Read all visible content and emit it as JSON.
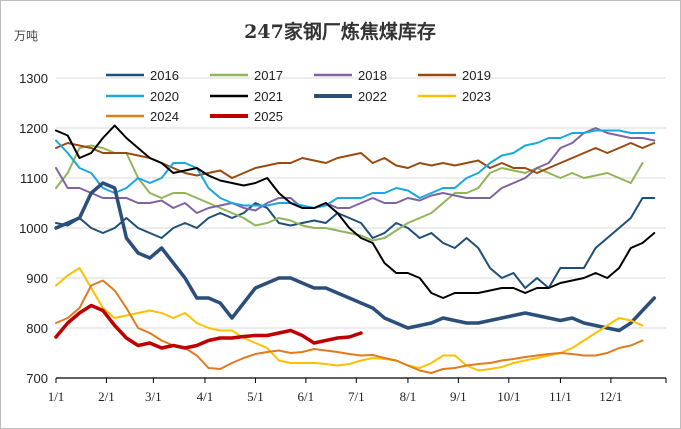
{
  "chart_data": {
    "type": "line",
    "title": "247家钢厂炼焦煤库存",
    "ylabel": "万吨",
    "xlabel": "",
    "ylim": [
      700,
      1300
    ],
    "yticks": [
      700,
      800,
      900,
      1000,
      1100,
      1200,
      1300
    ],
    "xlim": [
      0,
      52
    ],
    "x_tick_labels": [
      "1/1",
      "2/1",
      "3/1",
      "4/1",
      "5/1",
      "6/1",
      "7/1",
      "8/1",
      "9/1",
      "10/1",
      "11/1",
      "12/1"
    ],
    "x_tick_positions": [
      0,
      4.3,
      8.3,
      12.7,
      17,
      21.3,
      25.6,
      30,
      34.3,
      38.6,
      43,
      47.3
    ],
    "grid": "horizontal",
    "legend_position": "top",
    "series": [
      {
        "name": "2016",
        "color": "#1f4e79",
        "width": 2,
        "x": [
          0,
          1,
          2,
          3,
          4,
          5,
          6,
          7,
          8,
          9,
          10,
          11,
          12,
          13,
          14,
          15,
          16,
          17,
          18,
          19,
          20,
          21,
          22,
          23,
          24,
          25,
          26,
          27,
          28,
          29,
          30,
          31,
          32,
          33,
          34,
          35,
          36,
          37,
          38,
          39,
          40,
          41,
          42,
          43,
          44,
          45,
          46,
          47,
          48,
          49,
          50,
          51
        ],
        "values": [
          1010,
          1005,
          1020,
          1000,
          990,
          1000,
          1020,
          1000,
          990,
          980,
          1000,
          1010,
          1000,
          1020,
          1030,
          1020,
          1030,
          1050,
          1040,
          1010,
          1005,
          1010,
          1015,
          1010,
          1030,
          1020,
          1010,
          980,
          990,
          1010,
          1000,
          980,
          990,
          970,
          960,
          980,
          960,
          920,
          900,
          910,
          880,
          900,
          880,
          920,
          920,
          920,
          960,
          980,
          1000,
          1020,
          1060,
          1060
        ]
      },
      {
        "name": "2017",
        "color": "#92b45a",
        "width": 2,
        "x": [
          0,
          1,
          2,
          3,
          4,
          5,
          6,
          7,
          8,
          9,
          10,
          11,
          12,
          13,
          14,
          15,
          16,
          17,
          18,
          19,
          20,
          21,
          22,
          23,
          24,
          25,
          26,
          27,
          28,
          29,
          30,
          31,
          32,
          33,
          34,
          35,
          36,
          37,
          38,
          39,
          40,
          41,
          42,
          43,
          44,
          45,
          46,
          47,
          48,
          49,
          50
        ],
        "values": [
          1080,
          1110,
          1160,
          1165,
          1160,
          1150,
          1150,
          1100,
          1070,
          1060,
          1070,
          1070,
          1060,
          1050,
          1040,
          1030,
          1020,
          1005,
          1010,
          1020,
          1015,
          1005,
          1000,
          1000,
          995,
          990,
          985,
          975,
          980,
          995,
          1010,
          1020,
          1030,
          1050,
          1070,
          1070,
          1080,
          1110,
          1120,
          1115,
          1110,
          1120,
          1110,
          1100,
          1110,
          1100,
          1105,
          1110,
          1100,
          1090,
          1130
        ]
      },
      {
        "name": "2018",
        "color": "#8064a2",
        "width": 2,
        "x": [
          0,
          1,
          2,
          3,
          4,
          5,
          6,
          7,
          8,
          9,
          10,
          11,
          12,
          13,
          14,
          15,
          16,
          17,
          18,
          19,
          20,
          21,
          22,
          23,
          24,
          25,
          26,
          27,
          28,
          29,
          30,
          31,
          32,
          33,
          34,
          35,
          36,
          37,
          38,
          39,
          40,
          41,
          42,
          43,
          44,
          45,
          46,
          47,
          48,
          49,
          50,
          51
        ],
        "values": [
          1120,
          1080,
          1080,
          1070,
          1060,
          1060,
          1060,
          1050,
          1050,
          1055,
          1040,
          1050,
          1030,
          1040,
          1045,
          1050,
          1040,
          1035,
          1050,
          1060,
          1060,
          1040,
          1040,
          1050,
          1040,
          1040,
          1050,
          1060,
          1050,
          1050,
          1060,
          1055,
          1065,
          1070,
          1065,
          1060,
          1060,
          1060,
          1080,
          1090,
          1100,
          1120,
          1130,
          1160,
          1170,
          1190,
          1200,
          1190,
          1185,
          1180,
          1180,
          1175
        ]
      },
      {
        "name": "2019",
        "color": "#9a4a10",
        "width": 2,
        "x": [
          0,
          1,
          2,
          3,
          4,
          5,
          6,
          7,
          8,
          9,
          10,
          11,
          12,
          13,
          14,
          15,
          16,
          17,
          18,
          19,
          20,
          21,
          22,
          23,
          24,
          25,
          26,
          27,
          28,
          29,
          30,
          31,
          32,
          33,
          34,
          35,
          36,
          37,
          38,
          39,
          40,
          41,
          42,
          43,
          44,
          45,
          46,
          47,
          48,
          49,
          50,
          51
        ],
        "values": [
          1160,
          1170,
          1165,
          1160,
          1150,
          1150,
          1150,
          1145,
          1140,
          1130,
          1120,
          1110,
          1105,
          1110,
          1115,
          1100,
          1110,
          1120,
          1125,
          1130,
          1130,
          1140,
          1135,
          1130,
          1140,
          1145,
          1150,
          1130,
          1140,
          1125,
          1120,
          1130,
          1125,
          1130,
          1125,
          1130,
          1135,
          1120,
          1130,
          1120,
          1120,
          1110,
          1120,
          1130,
          1140,
          1150,
          1160,
          1150,
          1160,
          1170,
          1160,
          1170
        ]
      },
      {
        "name": "2020",
        "color": "#1aa7e0",
        "width": 2,
        "x": [
          0,
          1,
          2,
          3,
          4,
          5,
          6,
          7,
          8,
          9,
          10,
          11,
          12,
          13,
          14,
          15,
          16,
          17,
          18,
          19,
          20,
          21,
          22,
          23,
          24,
          25,
          26,
          27,
          28,
          29,
          30,
          31,
          32,
          33,
          34,
          35,
          36,
          37,
          38,
          39,
          40,
          41,
          42,
          43,
          44,
          45,
          46,
          47,
          48,
          49,
          50,
          51
        ],
        "values": [
          1175,
          1150,
          1120,
          1110,
          1080,
          1070,
          1080,
          1100,
          1090,
          1100,
          1130,
          1130,
          1120,
          1080,
          1060,
          1050,
          1045,
          1045,
          1045,
          1050,
          1050,
          1045,
          1040,
          1045,
          1060,
          1060,
          1060,
          1070,
          1070,
          1080,
          1075,
          1060,
          1070,
          1080,
          1080,
          1100,
          1110,
          1130,
          1145,
          1150,
          1165,
          1170,
          1180,
          1180,
          1190,
          1190,
          1195,
          1195,
          1195,
          1190,
          1190,
          1190
        ]
      },
      {
        "name": "2021",
        "color": "#000000",
        "width": 2,
        "x": [
          0,
          1,
          2,
          3,
          4,
          5,
          6,
          7,
          8,
          9,
          10,
          11,
          12,
          13,
          14,
          15,
          16,
          17,
          18,
          19,
          20,
          21,
          22,
          23,
          24,
          25,
          26,
          27,
          28,
          29,
          30,
          31,
          32,
          33,
          34,
          35,
          36,
          37,
          38,
          39,
          40,
          41,
          42,
          43,
          44,
          45,
          46,
          47,
          48,
          49,
          50,
          51
        ],
        "values": [
          1195,
          1185,
          1140,
          1150,
          1180,
          1205,
          1180,
          1160,
          1140,
          1130,
          1110,
          1115,
          1120,
          1105,
          1095,
          1090,
          1085,
          1090,
          1100,
          1070,
          1050,
          1040,
          1040,
          1050,
          1030,
          1000,
          980,
          970,
          930,
          910,
          910,
          900,
          870,
          860,
          870,
          870,
          870,
          875,
          880,
          880,
          870,
          880,
          880,
          890,
          895,
          900,
          910,
          900,
          920,
          960,
          970,
          990
        ]
      },
      {
        "name": "2022",
        "color": "#2b4e7a",
        "width": 3.5,
        "x": [
          0,
          1,
          2,
          3,
          4,
          5,
          6,
          7,
          8,
          9,
          10,
          11,
          12,
          13,
          14,
          15,
          16,
          17,
          18,
          19,
          20,
          21,
          22,
          23,
          24,
          25,
          26,
          27,
          28,
          29,
          30,
          31,
          32,
          33,
          34,
          35,
          36,
          37,
          38,
          39,
          40,
          41,
          42,
          43,
          44,
          45,
          46,
          47,
          48,
          49,
          50,
          51
        ],
        "values": [
          1000,
          1010,
          1020,
          1070,
          1090,
          1080,
          980,
          950,
          940,
          960,
          930,
          900,
          860,
          860,
          850,
          820,
          850,
          880,
          890,
          900,
          900,
          890,
          880,
          880,
          870,
          860,
          850,
          840,
          820,
          810,
          800,
          805,
          810,
          820,
          815,
          810,
          810,
          815,
          820,
          825,
          830,
          825,
          820,
          815,
          820,
          810,
          805,
          800,
          795,
          810,
          835,
          860
        ]
      },
      {
        "name": "2023",
        "color": "#ffc000",
        "width": 2,
        "x": [
          0,
          1,
          2,
          3,
          4,
          5,
          6,
          7,
          8,
          9,
          10,
          11,
          12,
          13,
          14,
          15,
          16,
          17,
          18,
          19,
          20,
          21,
          22,
          23,
          24,
          25,
          26,
          27,
          28,
          29,
          30,
          31,
          32,
          33,
          34,
          35,
          36,
          37,
          38,
          39,
          40,
          41,
          42,
          43,
          44,
          45,
          46,
          47,
          48,
          49,
          50
        ],
        "values": [
          885,
          905,
          920,
          880,
          840,
          820,
          825,
          830,
          835,
          830,
          820,
          830,
          810,
          800,
          795,
          795,
          780,
          770,
          760,
          735,
          730,
          730,
          730,
          728,
          725,
          728,
          735,
          740,
          738,
          735,
          725,
          720,
          730,
          745,
          745,
          725,
          715,
          718,
          722,
          730,
          735,
          740,
          745,
          750,
          760,
          775,
          790,
          805,
          820,
          815,
          805
        ]
      },
      {
        "name": "2024",
        "color": "#e07b20",
        "width": 2,
        "x": [
          0,
          1,
          2,
          3,
          4,
          5,
          6,
          7,
          8,
          9,
          10,
          11,
          12,
          13,
          14,
          15,
          16,
          17,
          18,
          19,
          20,
          21,
          22,
          23,
          24,
          25,
          26,
          27,
          28,
          29,
          30,
          31,
          32,
          33,
          34,
          35,
          36,
          37,
          38,
          39,
          40,
          41,
          42,
          43,
          44,
          45,
          46,
          47,
          48,
          49,
          50
        ],
        "values": [
          810,
          820,
          840,
          885,
          895,
          875,
          840,
          800,
          790,
          775,
          765,
          760,
          745,
          720,
          718,
          730,
          740,
          748,
          752,
          755,
          750,
          752,
          758,
          755,
          752,
          748,
          745,
          746,
          740,
          735,
          725,
          715,
          710,
          718,
          720,
          725,
          728,
          730,
          735,
          738,
          742,
          745,
          748,
          750,
          748,
          745,
          745,
          750,
          760,
          765,
          775
        ]
      },
      {
        "name": "2025",
        "color": "#c00000",
        "width": 3.5,
        "x": [
          0,
          1,
          2,
          3,
          4,
          5,
          6,
          7,
          8,
          9,
          10,
          11,
          12,
          13,
          14,
          15,
          16,
          17,
          18,
          19,
          20,
          21,
          22,
          23,
          24,
          25,
          26
        ],
        "values": [
          782,
          810,
          830,
          845,
          835,
          805,
          780,
          765,
          770,
          760,
          765,
          760,
          765,
          775,
          780,
          780,
          783,
          785,
          785,
          790,
          795,
          785,
          770,
          775,
          780,
          782,
          790
        ]
      }
    ]
  }
}
